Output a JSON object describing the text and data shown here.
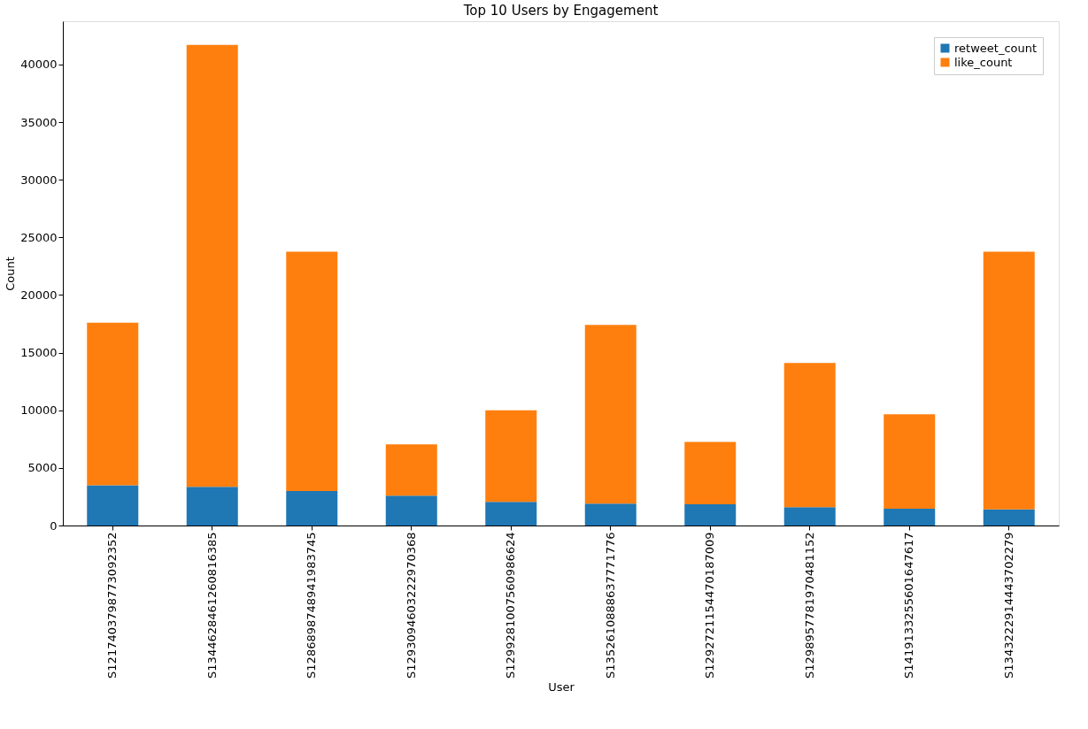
{
  "chart_data": {
    "type": "bar",
    "title": "Top 10 Users by Engagement",
    "xlabel": "User",
    "ylabel": "Count",
    "categories": [
      "S1217403798773092352",
      "S1344628461260816385",
      "S1286898748941983745",
      "S1293094603222970368",
      "S1299281007560986624",
      "S1352610888637771776",
      "S1292721154470187009",
      "S1298957781970481152",
      "S1419133255601647617",
      "S1343222914443702279"
    ],
    "series": [
      {
        "name": "retweet_count",
        "color": "#1f77b4",
        "values": [
          3500,
          3350,
          3000,
          2600,
          2050,
          1900,
          1850,
          1600,
          1450,
          1400
        ]
      },
      {
        "name": "like_count",
        "color": "#ff7f0e",
        "values": [
          14100,
          38350,
          20750,
          4450,
          7950,
          15500,
          5400,
          12500,
          8200,
          22350
        ]
      }
    ],
    "stacked": true,
    "ylim": [
      0,
      43750
    ],
    "yticks": [
      0,
      5000,
      10000,
      15000,
      20000,
      25000,
      30000,
      35000,
      40000
    ],
    "grid": false,
    "legend": "top right"
  }
}
